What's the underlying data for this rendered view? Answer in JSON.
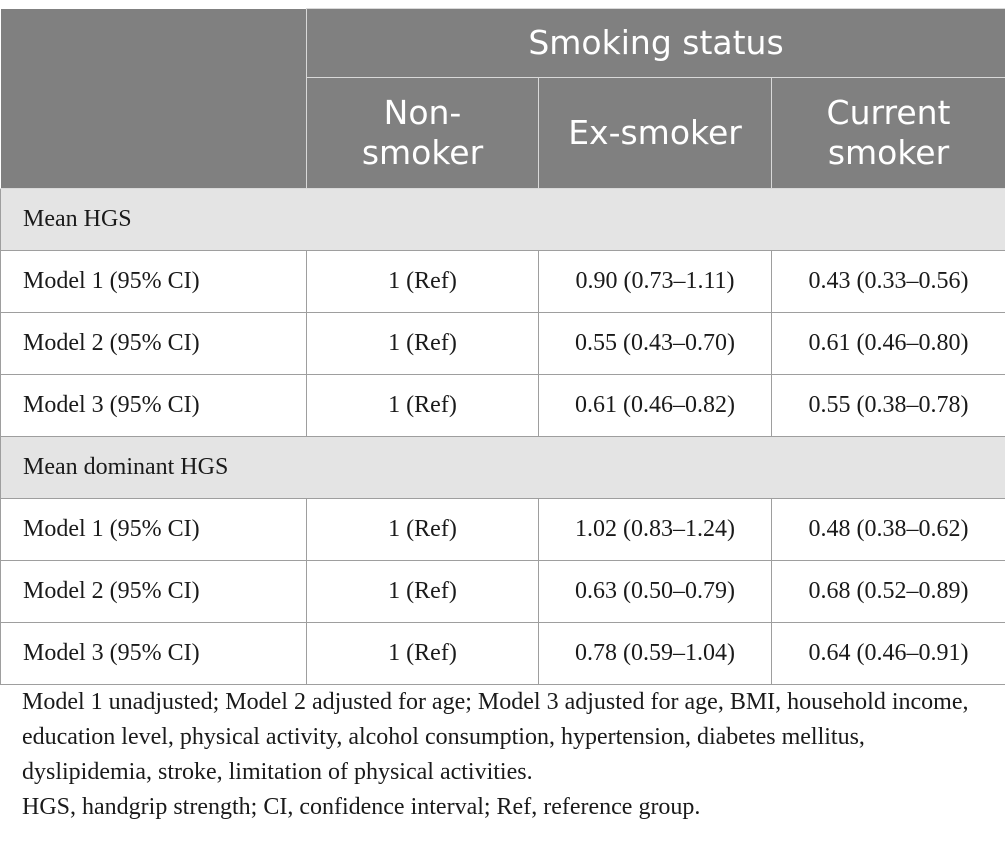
{
  "table": {
    "group_header": "Smoking status",
    "columns": [
      "Non-\nsmoker",
      "Ex-smoker",
      "Current\nsmoker"
    ],
    "sections": [
      {
        "title": "Mean HGS",
        "rows": [
          {
            "label": "Model 1 (95% CI)",
            "cells": [
              "1 (Ref)",
              "0.90 (0.73–1.11)",
              "0.43 (0.33–0.56)"
            ]
          },
          {
            "label": "Model 2 (95% CI)",
            "cells": [
              "1 (Ref)",
              "0.55 (0.43–0.70)",
              "0.61 (0.46–0.80)"
            ]
          },
          {
            "label": "Model 3 (95% CI)",
            "cells": [
              "1 (Ref)",
              "0.61 (0.46–0.82)",
              "0.55 (0.38–0.78)"
            ]
          }
        ]
      },
      {
        "title": "Mean dominant HGS",
        "rows": [
          {
            "label": "Model 1 (95% CI)",
            "cells": [
              "1 (Ref)",
              "1.02 (0.83–1.24)",
              "0.48 (0.38–0.62)"
            ]
          },
          {
            "label": "Model 2 (95% CI)",
            "cells": [
              "1 (Ref)",
              "0.63 (0.50–0.79)",
              "0.68 (0.52–0.89)"
            ]
          },
          {
            "label": "Model 3 (95% CI)",
            "cells": [
              "1 (Ref)",
              "0.78 (0.59–1.04)",
              "0.64 (0.46–0.91)"
            ]
          }
        ]
      }
    ]
  },
  "notes": {
    "line1": "Model 1 unadjusted; Model 2 adjusted for age; Model 3 adjusted for age, BMI, household income, education level, physical activity, alcohol consumption, hypertension, diabetes mellitus, dyslipidemia, stroke, limitation of physical activities.",
    "line2": "HGS, handgrip strength; CI, confidence interval; Ref, reference group."
  }
}
